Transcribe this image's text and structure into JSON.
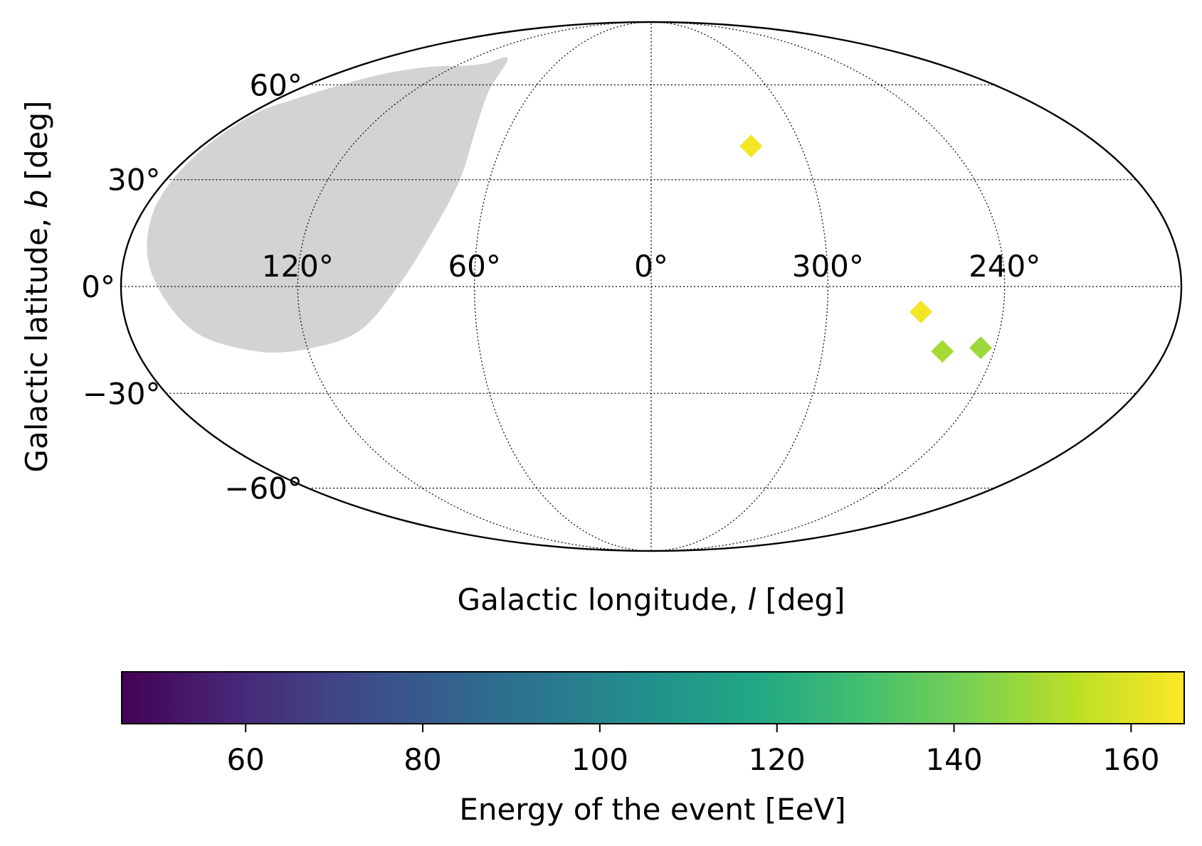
{
  "chart_data": {
    "type": "scatter",
    "projection": "mollweide",
    "xlabel": "Galactic longitude, l [deg]",
    "ylabel": "Galactic latitude, b [deg]",
    "xlabel_parts": [
      "Galactic longitude, ",
      "l",
      " [deg]"
    ],
    "ylabel_parts": [
      "Galactic latitude, ",
      "b",
      " [deg]"
    ],
    "x_ticks": [
      {
        "l": 120,
        "label": "120°"
      },
      {
        "l": 60,
        "label": "60°"
      },
      {
        "l": 0,
        "label": "0°"
      },
      {
        "l": 300,
        "label": "300°"
      },
      {
        "l": 240,
        "label": "240°"
      }
    ],
    "y_ticks": [
      {
        "b": 60,
        "label": "60°"
      },
      {
        "b": 30,
        "label": "30°"
      },
      {
        "b": 0,
        "label": "0°"
      },
      {
        "b": -30,
        "label": "−30°"
      },
      {
        "b": -60,
        "label": "−60°"
      }
    ],
    "grid": true,
    "marker": "diamond",
    "points": [
      {
        "l": 320,
        "b": 40,
        "energy": 164
      },
      {
        "l": 268,
        "b": -7,
        "energy": 164
      },
      {
        "l": 258,
        "b": -18,
        "energy": 150
      },
      {
        "l": 245,
        "b": -17,
        "energy": 148
      }
    ],
    "region": {
      "color": "#d3d3d3",
      "polygon": [
        [
          96,
          70
        ],
        [
          105,
          68
        ],
        [
          118,
          67
        ],
        [
          129,
          67
        ],
        [
          142,
          66
        ],
        [
          156,
          63
        ],
        [
          170,
          56
        ],
        [
          178,
          49
        ],
        [
          178,
          35
        ],
        [
          176,
          20
        ],
        [
          170,
          4
        ],
        [
          158,
          -12
        ],
        [
          138,
          -18
        ],
        [
          118,
          -17
        ],
        [
          100,
          -12
        ],
        [
          86,
          0
        ],
        [
          76,
          15
        ],
        [
          71,
          30
        ],
        [
          74,
          45
        ],
        [
          82,
          58
        ]
      ]
    },
    "colorbar": {
      "label": "Energy of the event [EeV]",
      "colormap": "viridis",
      "min": 46,
      "max": 166,
      "ticks": [
        60,
        80,
        100,
        120,
        140,
        160
      ],
      "tick_labels": [
        "60",
        "80",
        "100",
        "120",
        "140",
        "160"
      ]
    }
  }
}
